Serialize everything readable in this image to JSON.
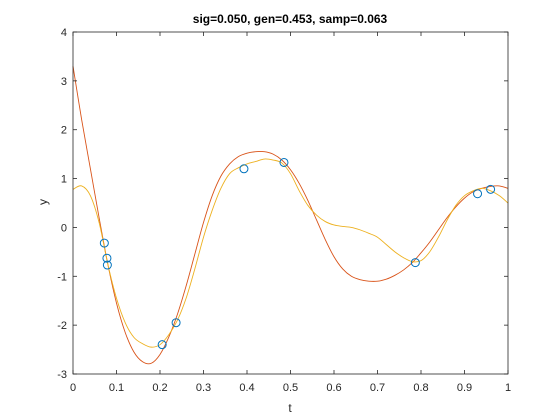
{
  "chart_data": {
    "type": "line",
    "title": "sig=0.050, gen=0.453, samp=0.063",
    "xlabel": "t",
    "ylabel": "y",
    "xlim": [
      0,
      1
    ],
    "ylim": [
      -3,
      4
    ],
    "xticks": [
      0,
      0.1,
      0.2,
      0.3,
      0.4,
      0.5,
      0.6,
      0.7,
      0.8,
      0.9,
      1
    ],
    "xtick_labels": [
      "0",
      "0.1",
      "0.2",
      "0.3",
      "0.4",
      "0.5",
      "0.6",
      "0.7",
      "0.8",
      "0.9",
      "1"
    ],
    "yticks": [
      -3,
      -2,
      -1,
      0,
      1,
      2,
      3,
      4
    ],
    "ytick_labels": [
      "-3",
      "-2",
      "-1",
      "0",
      "1",
      "2",
      "3",
      "4"
    ],
    "grid": false,
    "box": true,
    "colors": {
      "red": "#d95319",
      "yellow": "#edb120",
      "marker": "#0072bd",
      "axis": "#262626"
    },
    "series": [
      {
        "style": "line",
        "color": "#d95319",
        "x": [
          0,
          0.02,
          0.04,
          0.06,
          0.08,
          0.1,
          0.12,
          0.14,
          0.16,
          0.18,
          0.2,
          0.22,
          0.24,
          0.26,
          0.28,
          0.3,
          0.32,
          0.34,
          0.36,
          0.38,
          0.4,
          0.42,
          0.44,
          0.46,
          0.48,
          0.5,
          0.52,
          0.54,
          0.56,
          0.58,
          0.6,
          0.62,
          0.64,
          0.66,
          0.68,
          0.7,
          0.72,
          0.74,
          0.76,
          0.78,
          0.8,
          0.82,
          0.84,
          0.86,
          0.88,
          0.9,
          0.92,
          0.94,
          0.96,
          0.98,
          1
        ],
        "y": [
          3.3,
          2.2,
          1.2,
          0.2,
          -0.75,
          -1.55,
          -2.15,
          -2.55,
          -2.75,
          -2.78,
          -2.6,
          -2.25,
          -1.78,
          -1.2,
          -0.55,
          0.1,
          0.65,
          1.05,
          1.3,
          1.45,
          1.52,
          1.55,
          1.55,
          1.5,
          1.38,
          1.18,
          0.9,
          0.55,
          0.15,
          -0.25,
          -0.6,
          -0.85,
          -1.0,
          -1.07,
          -1.1,
          -1.1,
          -1.06,
          -0.98,
          -0.87,
          -0.72,
          -0.52,
          -0.3,
          -0.05,
          0.2,
          0.42,
          0.6,
          0.73,
          0.8,
          0.84,
          0.85,
          0.8
        ]
      },
      {
        "style": "line",
        "color": "#edb120",
        "x": [
          0,
          0.02,
          0.04,
          0.06,
          0.08,
          0.1,
          0.12,
          0.14,
          0.16,
          0.18,
          0.2,
          0.22,
          0.24,
          0.26,
          0.28,
          0.3,
          0.32,
          0.34,
          0.36,
          0.38,
          0.4,
          0.42,
          0.44,
          0.46,
          0.48,
          0.5,
          0.52,
          0.54,
          0.56,
          0.58,
          0.6,
          0.62,
          0.64,
          0.66,
          0.68,
          0.7,
          0.72,
          0.74,
          0.76,
          0.78,
          0.8,
          0.82,
          0.84,
          0.86,
          0.88,
          0.9,
          0.92,
          0.94,
          0.96,
          0.98,
          1
        ],
        "y": [
          0.78,
          0.85,
          0.65,
          0.1,
          -0.75,
          -1.45,
          -1.95,
          -2.25,
          -2.38,
          -2.45,
          -2.4,
          -2.2,
          -1.9,
          -1.45,
          -0.85,
          -0.2,
          0.35,
          0.8,
          1.1,
          1.22,
          1.3,
          1.35,
          1.4,
          1.38,
          1.32,
          1.1,
          0.75,
          0.45,
          0.25,
          0.12,
          0.05,
          0.02,
          0.0,
          -0.05,
          -0.12,
          -0.2,
          -0.35,
          -0.5,
          -0.62,
          -0.7,
          -0.68,
          -0.5,
          -0.2,
          0.15,
          0.45,
          0.65,
          0.75,
          0.8,
          0.75,
          0.65,
          0.5
        ]
      },
      {
        "style": "markers",
        "color": "#0072bd",
        "x": [
          0.072,
          0.078,
          0.079,
          0.205,
          0.237,
          0.393,
          0.485,
          0.787,
          0.93,
          0.96
        ],
        "y": [
          -0.32,
          -0.63,
          -0.77,
          -2.4,
          -1.95,
          1.2,
          1.33,
          -0.72,
          0.69,
          0.78
        ]
      }
    ]
  }
}
